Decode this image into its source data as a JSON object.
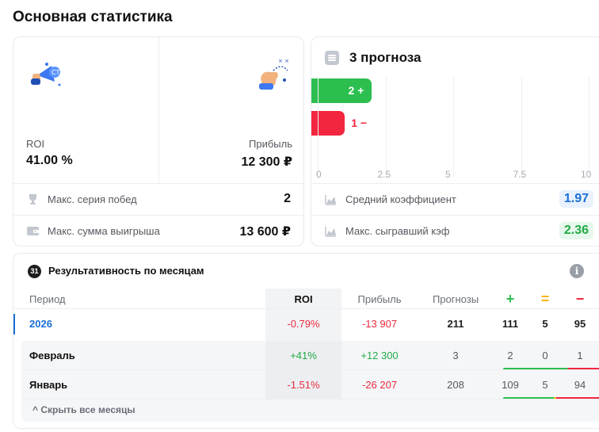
{
  "title": "Основная статистика",
  "summary": {
    "roi_label": "ROI",
    "roi_value": "41.00 %",
    "profit_label": "Прибыль",
    "profit_value": "12 300 ₽",
    "rows": [
      {
        "label": "Макс. серия побед",
        "value": "2",
        "icon": "trophy-icon"
      },
      {
        "label": "Макс. сумма выигрыша",
        "value": "13 600 ₽",
        "icon": "wallet-icon"
      }
    ]
  },
  "forecasts": {
    "title": "3 прогноза",
    "win_label": "2 +",
    "lose_label": "1 −",
    "wins": 2,
    "losses": 1,
    "axis_ticks": [
      "0",
      "2.5",
      "5",
      "7.5",
      "10"
    ],
    "axis_max": 10,
    "rows": [
      {
        "label": "Средний коэффициент",
        "value": "1.97",
        "icon": "chart-area-icon",
        "color": "#1a6fd6",
        "bg": "#e8f1fd"
      },
      {
        "label": "Макс. сыгравший кэф",
        "value": "2.36",
        "icon": "chart-area-icon",
        "color": "#22ab47",
        "bg": "#e6f7eb"
      }
    ]
  },
  "months": {
    "badge": "31",
    "title": "Результативность по месяцам",
    "columns": {
      "period": "Период",
      "roi": "ROI",
      "profit": "Прибыль",
      "forecasts": "Прогнозы",
      "win": "+",
      "draw": "=",
      "loss": "−"
    },
    "rows": [
      {
        "period": "2026",
        "roi": "-0.79%",
        "profit": "-13 907",
        "forecasts": "211",
        "win": "111",
        "draw": "5",
        "loss": "95",
        "roi_sign": "neg",
        "profit_sign": "neg"
      },
      {
        "period": "Февраль",
        "roi": "+41%",
        "profit": "+12 300",
        "forecasts": "3",
        "win": "2",
        "draw": "0",
        "loss": "1",
        "roi_sign": "pos",
        "profit_sign": "pos"
      },
      {
        "period": "Январь",
        "roi": "-1.51%",
        "profit": "-26 207",
        "forecasts": "208",
        "win": "109",
        "draw": "5",
        "loss": "94",
        "roi_sign": "neg",
        "profit_sign": "neg"
      }
    ],
    "hide_label": "^ Скрыть все месяцы"
  },
  "colors": {
    "win": "#2cbf4f",
    "draw": "#f2b705",
    "loss": "#f3263f",
    "accent": "#1a6fd6"
  }
}
